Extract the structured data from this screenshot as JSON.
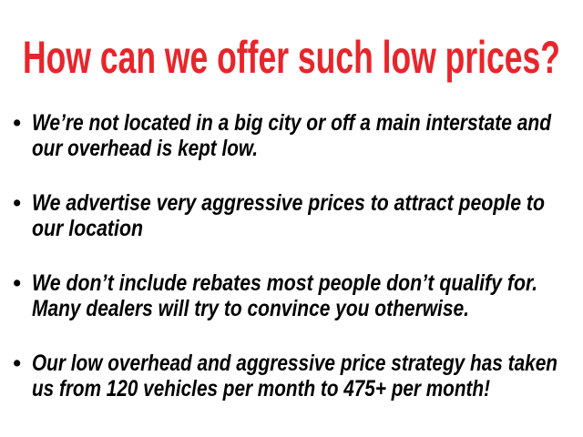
{
  "title": "How can we offer such low prices?",
  "colors": {
    "title": "#e8252b",
    "text": "#000000"
  },
  "bullet_glyph": "•",
  "bullets": [
    {
      "lines": [
        "We’re not located in a big city or off a main interstate and",
        "our overhead is kept low."
      ]
    },
    {
      "lines": [
        "We advertise very aggressive prices to attract people to",
        "our location"
      ]
    },
    {
      "lines": [
        "We don’t include rebates most people don’t qualify for.",
        "Many dealers will try to convince you otherwise."
      ]
    },
    {
      "lines": [
        "Our low overhead and aggressive price strategy has taken",
        "us from 120 vehicles per month to 475+ per month!"
      ]
    }
  ]
}
